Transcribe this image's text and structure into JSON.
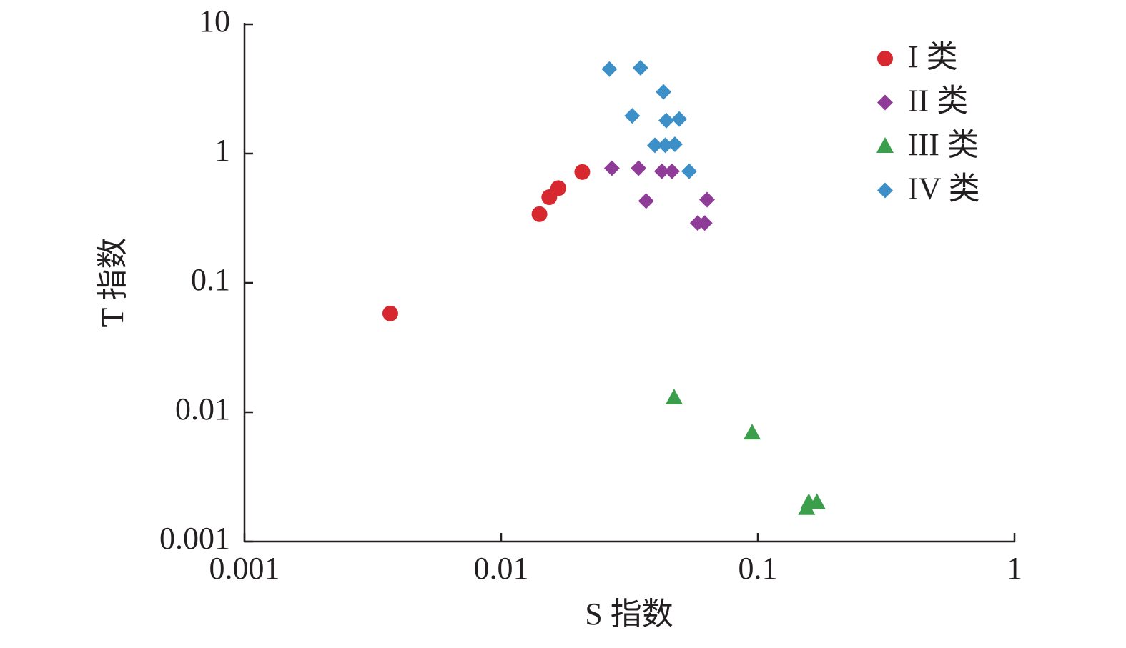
{
  "chart_data": {
    "type": "scatter",
    "xlabel": "S 指数",
    "ylabel": "T 指数",
    "xscale": "log",
    "yscale": "log",
    "xlim": [
      0.001,
      1
    ],
    "ylim": [
      0.001,
      10
    ],
    "xticks": [
      0.001,
      0.01,
      0.1,
      1
    ],
    "yticks": [
      0.001,
      0.01,
      0.1,
      1,
      10
    ],
    "grid": false,
    "legend": "upper right",
    "series": [
      {
        "name": "I 类",
        "color": "#d7282f",
        "marker": "circle",
        "x": [
          0.0037,
          0.0141,
          0.0154,
          0.0167,
          0.0207
        ],
        "values": [
          0.058,
          0.34,
          0.46,
          0.54,
          0.72
        ]
      },
      {
        "name": "II 类",
        "color": "#8e3c97",
        "marker": "diamond",
        "x": [
          0.027,
          0.0343,
          0.0423,
          0.0463,
          0.0367,
          0.0634,
          0.0583,
          0.0621
        ],
        "values": [
          0.77,
          0.77,
          0.73,
          0.73,
          0.43,
          0.44,
          0.29,
          0.29
        ]
      },
      {
        "name": "III 类",
        "color": "#3a9e4a",
        "marker": "triangle",
        "x": [
          0.0472,
          0.095,
          0.155,
          0.158,
          0.17
        ],
        "values": [
          0.0129,
          0.0069,
          0.0018,
          0.002,
          0.002
        ]
      },
      {
        "name": "IV 类",
        "color": "#3d8fc8",
        "marker": "diamond",
        "x": [
          0.0264,
          0.0349,
          0.0429,
          0.0324,
          0.044,
          0.0494,
          0.0397,
          0.0436,
          0.0475,
          0.054
        ],
        "values": [
          4.5,
          4.6,
          3.0,
          1.96,
          1.8,
          1.85,
          1.16,
          1.16,
          1.18,
          0.73
        ]
      }
    ]
  }
}
